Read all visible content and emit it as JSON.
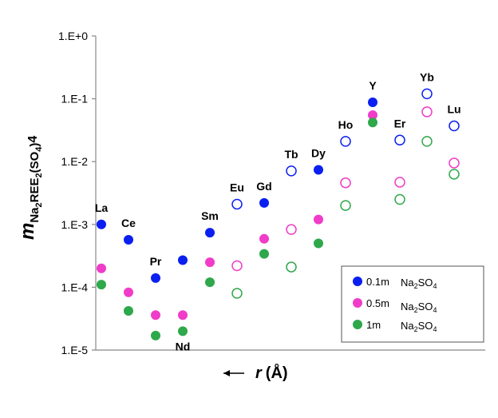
{
  "chart_data": {
    "type": "scatter",
    "y_label": {
      "main": "m",
      "sub": [
        "Na",
        "2",
        "REE",
        "2",
        "(SO",
        "4",
        ")",
        "4"
      ]
    },
    "x_label": {
      "symbol": "r",
      "unit": "(Å)"
    },
    "categories": [
      "La",
      "Ce",
      "Pr",
      "Nd",
      "Sm",
      "Eu",
      "Gd",
      "Tb",
      "Dy",
      "Ho",
      "Y",
      "Er",
      "Yb",
      "Lu"
    ],
    "marker_fill": [
      "filled",
      "filled",
      "filled",
      "filled",
      "filled",
      "open",
      "filled",
      "open",
      "filled",
      "open",
      "filled",
      "open",
      "open",
      "open"
    ],
    "series": [
      {
        "name": "0.1m",
        "color": "#0a1ff0",
        "values": [
          0.001,
          0.00057,
          0.00014,
          0.00027,
          0.00074,
          0.0021,
          0.0022,
          0.0071,
          0.0074,
          0.021,
          0.088,
          0.022,
          0.12,
          0.037
        ]
      },
      {
        "name": "0.5m",
        "color": "#f03cc8",
        "values": [
          0.0002,
          8.3e-05,
          3.6e-05,
          3.6e-05,
          0.00025,
          0.00022,
          0.00059,
          0.00083,
          0.0012,
          0.0046,
          0.055,
          0.0047,
          0.062,
          0.0095
        ]
      },
      {
        "name": "1m",
        "color": "#2ea84a",
        "values": [
          0.00011,
          4.2e-05,
          1.7e-05,
          2e-05,
          0.00012,
          8e-05,
          0.00034,
          0.00021,
          0.0005,
          0.002,
          0.042,
          0.0025,
          0.021,
          0.0063
        ]
      }
    ],
    "legend_salt": [
      "Na",
      "2",
      "SO",
      "4"
    ],
    "ylim": [
      1e-05,
      1
    ],
    "yticks": [
      {
        "value": 1,
        "label": "1.E+0"
      },
      {
        "value": 0.1,
        "label": "1.E-1"
      },
      {
        "value": 0.01,
        "label": "1.E-2"
      },
      {
        "value": 0.001,
        "label": "1.E-3"
      },
      {
        "value": 0.0001,
        "label": "1.E-4"
      },
      {
        "value": 1e-05,
        "label": "1.E-5"
      }
    ],
    "log_y": true,
    "legend": "bottom-right"
  }
}
